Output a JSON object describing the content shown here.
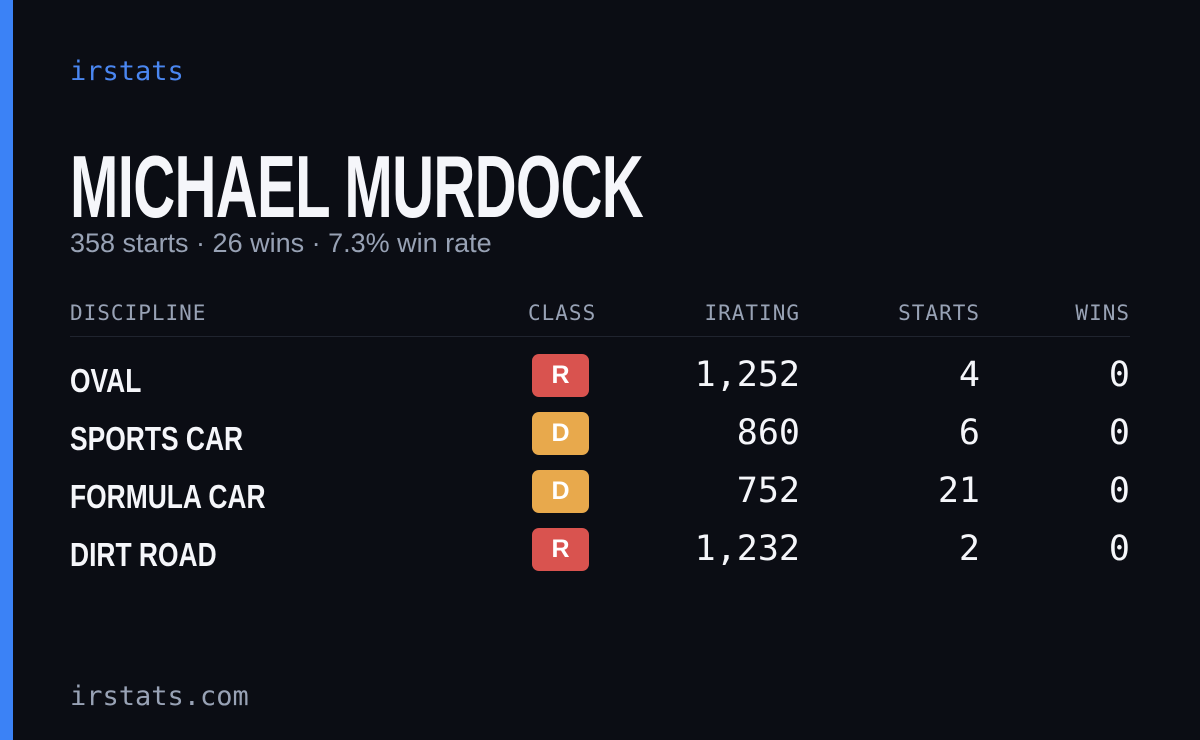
{
  "brand": "irstats",
  "driver": {
    "name": "MICHAEL MURDOCK",
    "summary": "358 starts · 26 wins · 7.3% win rate"
  },
  "table": {
    "headers": [
      "DISCIPLINE",
      "CLASS",
      "IRATING",
      "STARTS",
      "WINS"
    ],
    "rows": [
      {
        "discipline": "OVAL",
        "class": "R",
        "class_color": "#d9534f",
        "irating": "1,252",
        "starts": 4,
        "wins": 0
      },
      {
        "discipline": "SPORTS CAR",
        "class": "D",
        "class_color": "#e8a94c",
        "irating": "860",
        "starts": 6,
        "wins": 0
      },
      {
        "discipline": "FORMULA CAR",
        "class": "D",
        "class_color": "#e8a94c",
        "irating": "752",
        "starts": 21,
        "wins": 0
      },
      {
        "discipline": "DIRT ROAD",
        "class": "R",
        "class_color": "#d9534f",
        "irating": "1,232",
        "starts": 2,
        "wins": 0
      }
    ]
  },
  "footer": "irstats.com"
}
